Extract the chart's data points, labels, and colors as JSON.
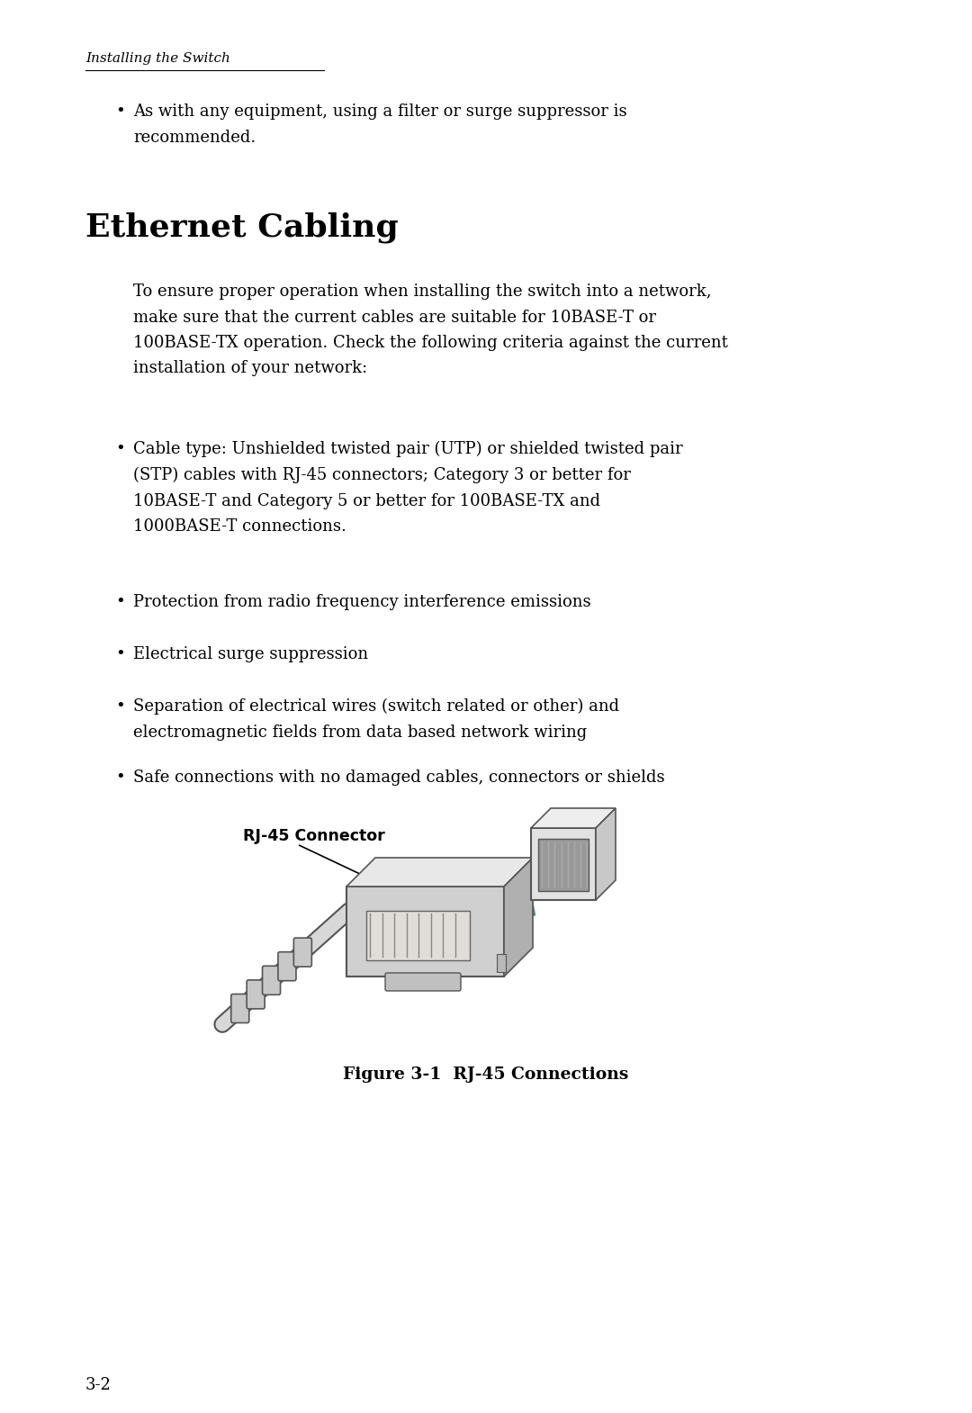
{
  "bg_color": "#ffffff",
  "header_text": "Installing the Switch",
  "section_title": "Ethernet Cabling",
  "intro_text": "To ensure proper operation when installing the switch into a network,\nmake sure that the current cables are suitable for 10BASE-T or\n100BASE-TX operation. Check the following criteria against the current\ninstallation of your network:",
  "bullet_items": [
    "Cable type: Unshielded twisted pair (UTP) or shielded twisted pair\n(STP) cables with RJ-45 connectors; Category 3 or better for\n10BASE-T and Category 5 or better for 100BASE-TX and\n1000BASE-T connections.",
    "Protection from radio frequency interference emissions",
    "Electrical surge suppression",
    "Separation of electrical wires (switch related or other) and\nelectromagnetic fields from data based network wiring",
    "Safe connections with no damaged cables, connectors or shields"
  ],
  "top_bullet": "As with any equipment, using a filter or surge suppressor is\nrecommended.",
  "figure_label": "RJ-45 Connector",
  "figure_caption": "Figure 3-1  RJ-45 Connections",
  "page_number": "3-2",
  "text_color": "#000000"
}
